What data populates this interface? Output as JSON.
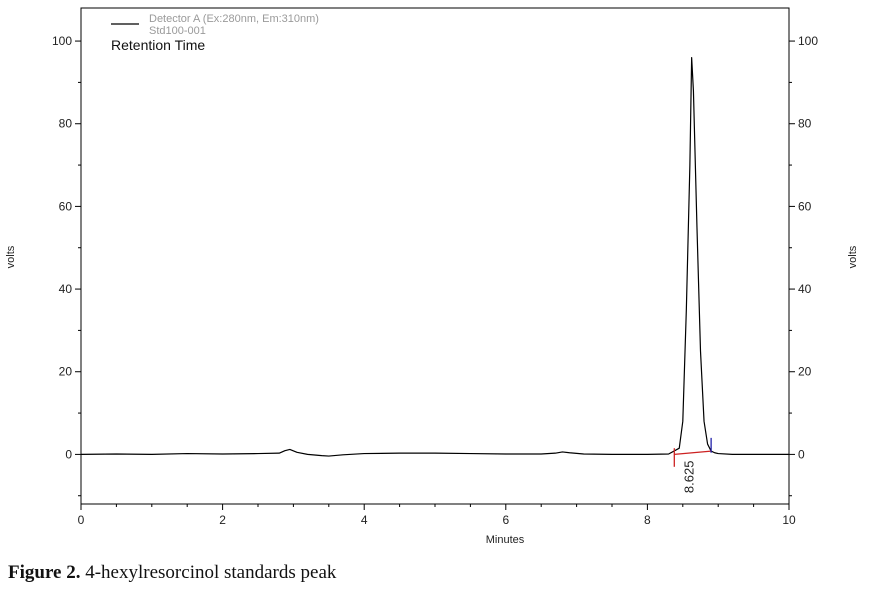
{
  "chart_data": {
    "type": "line",
    "xlabel": "Minutes",
    "ylabel_left": "volts",
    "ylabel_right": "volts",
    "xlim": [
      0,
      10
    ],
    "ylim": [
      -12,
      108
    ],
    "x_ticks": [
      0,
      2,
      4,
      6,
      8,
      10
    ],
    "y_ticks": [
      0,
      20,
      40,
      60,
      80,
      100
    ],
    "grid": false,
    "legend": {
      "placement": "top-left",
      "series_name": "Detector A (Ex:280nm, Em:310nm)",
      "series_file": "Std100-001",
      "annotation_title": "Retention Time"
    },
    "series": [
      {
        "name": "Detector A (Ex:280nm, Em:310nm)",
        "color": "#000000",
        "x": [
          0,
          0.5,
          1.0,
          1.5,
          2.0,
          2.5,
          2.8,
          2.88,
          2.95,
          3.05,
          3.2,
          3.4,
          3.5,
          3.7,
          4.0,
          4.5,
          5.0,
          5.5,
          6.0,
          6.5,
          6.7,
          6.8,
          6.9,
          7.1,
          7.5,
          8.0,
          8.3,
          8.45,
          8.5,
          8.55,
          8.6,
          8.625,
          8.65,
          8.7,
          8.75,
          8.8,
          8.85,
          8.9,
          8.95,
          9.0,
          9.2,
          9.5,
          10.0
        ],
        "y": [
          0,
          0.1,
          0,
          0.2,
          0.1,
          0.2,
          0.3,
          0.9,
          1.2,
          0.5,
          0,
          -0.3,
          -0.4,
          -0.1,
          0.2,
          0.3,
          0.3,
          0.2,
          0.1,
          0.1,
          0.3,
          0.6,
          0.4,
          0.1,
          0,
          0,
          0.1,
          1.5,
          8,
          35,
          70,
          96,
          88,
          55,
          25,
          8,
          2.5,
          0.8,
          0.4,
          0.2,
          0,
          0,
          0
        ]
      }
    ],
    "peaks": [
      {
        "label": "8.625",
        "x": 8.625,
        "y": 96,
        "baseline_start": 8.38,
        "baseline_end": 8.9
      }
    ],
    "colors": {
      "trace": "#000000",
      "baseline": "#cc2222",
      "marker_start": "#cc2222",
      "marker_end": "#2222aa"
    }
  },
  "caption": {
    "number": "Figure 2.",
    "text": " 4-hexylresorcinol standards peak"
  }
}
